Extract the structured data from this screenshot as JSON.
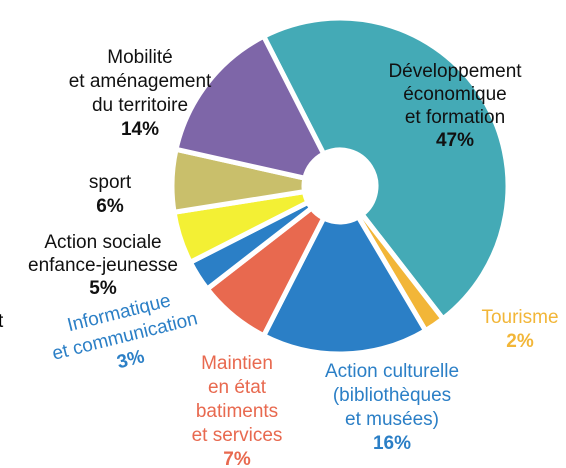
{
  "chart_data": {
    "type": "donut",
    "labels": [
      [
        "Développement",
        "économique",
        "et formation"
      ],
      [
        "Tourisme"
      ],
      [
        "Action culturelle",
        "(bibliothèques",
        "et musées)"
      ],
      [
        "Maintien",
        "en état",
        "batiments",
        "et services"
      ],
      [
        "Informatique",
        "et communication"
      ],
      [
        "Action sociale",
        "enfance-jeunesse"
      ],
      [
        "sport"
      ],
      [
        "Mobilité",
        "et aménagement",
        "du territoire"
      ]
    ],
    "values": [
      47,
      2,
      16,
      7,
      3,
      5,
      6,
      14
    ],
    "value_labels": [
      "47%",
      "2%",
      "16%",
      "7%",
      "3%",
      "5%",
      "6%",
      "14%"
    ],
    "colors": [
      "#44aab6",
      "#f2b638",
      "#2b7fc6",
      "#e8694f",
      "#2b7fc6",
      "#f3f034",
      "#c9bf6b",
      "#7e66a8"
    ],
    "label_colors": [
      "#111111",
      "#f2b638",
      "#2b7fc6",
      "#e8694f",
      "#2b7fc6",
      "#111111",
      "#111111",
      "#111111"
    ],
    "annotations": [
      "t"
    ]
  }
}
